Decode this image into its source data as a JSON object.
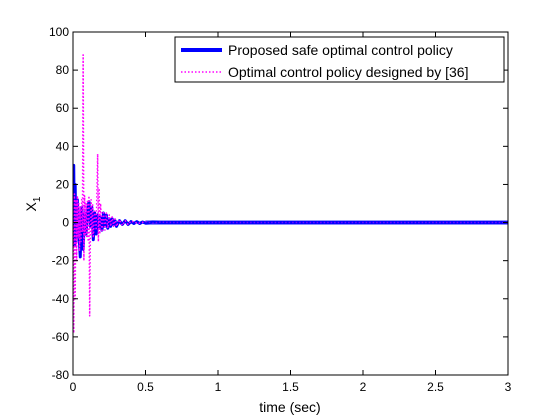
{
  "chart_data": {
    "type": "line",
    "title": "",
    "xlabel": "time (sec)",
    "ylabel_main": "X",
    "ylabel_sub": "1",
    "xlim": [
      0,
      3
    ],
    "ylim": [
      -80,
      100
    ],
    "x_ticks": [
      "0",
      "0.5",
      "1",
      "1.5",
      "2",
      "2.5",
      "3"
    ],
    "y_ticks": [
      "-80",
      "-60",
      "-40",
      "-20",
      "0",
      "20",
      "40",
      "60",
      "80",
      "100"
    ],
    "grid": false,
    "legend_position": "top-right",
    "series": [
      {
        "name": "Proposed safe optimal control policy",
        "color": "#0000ff",
        "style": "solid",
        "x": [
          0,
          0.005,
          0.01,
          0.015,
          0.02,
          0.03,
          0.04,
          0.05,
          0.06,
          0.07,
          0.08,
          0.09,
          0.1,
          0.11,
          0.12,
          0.13,
          0.14,
          0.15,
          0.16,
          0.17,
          0.18,
          0.19,
          0.2,
          0.21,
          0.22,
          0.23,
          0.24,
          0.25,
          0.26,
          0.27,
          0.28,
          0.29,
          0.3,
          0.32,
          0.34,
          0.36,
          0.38,
          0.4,
          0.42,
          0.44,
          0.46,
          0.48,
          0.5,
          0.55,
          0.6,
          0.7,
          0.8,
          1.0,
          1.5,
          2.0,
          2.5,
          3.0
        ],
        "y": [
          0,
          30,
          -12,
          20,
          -10,
          12,
          -5,
          -18,
          8,
          -14,
          5,
          -6,
          6,
          11,
          -2,
          8,
          -9,
          5,
          -6,
          4,
          -3,
          3,
          -4,
          5,
          -2,
          4,
          -3,
          2,
          -2,
          2,
          -1,
          1,
          -2,
          1,
          -1,
          1,
          -1,
          0.5,
          -0.5,
          0.5,
          -0.5,
          0.3,
          -0.3,
          0.2,
          0,
          0,
          0,
          0,
          0,
          0,
          0,
          0
        ]
      },
      {
        "name": "Optimal control policy designed by [36]",
        "color": "#ff00ff",
        "style": "dotted",
        "x": [
          0,
          0.005,
          0.01,
          0.015,
          0.02,
          0.025,
          0.03,
          0.035,
          0.04,
          0.045,
          0.05,
          0.055,
          0.06,
          0.065,
          0.07,
          0.075,
          0.08,
          0.085,
          0.09,
          0.095,
          0.1,
          0.105,
          0.11,
          0.115,
          0.12,
          0.125,
          0.13,
          0.135,
          0.14,
          0.15,
          0.16,
          0.17,
          0.175,
          0.18,
          0.185,
          0.19,
          0.2,
          0.21,
          0.22,
          0.23,
          0.24,
          0.25,
          0.26,
          0.27,
          0.28,
          0.29,
          0.3,
          0.32,
          0.34,
          0.36,
          0.38,
          0.4,
          0.45,
          0.5,
          0.55,
          0.6,
          0.7,
          1.0,
          1.5,
          2.0,
          2.5,
          3.0
        ],
        "y": [
          0,
          -58,
          15,
          -40,
          12,
          -20,
          14,
          -8,
          10,
          -15,
          8,
          -10,
          12,
          -5,
          88,
          -20,
          14,
          -6,
          10,
          -8,
          12,
          -10,
          14,
          -49,
          -5,
          12,
          -6,
          10,
          -8,
          6,
          -4,
          36,
          -10,
          18,
          -6,
          10,
          -5,
          6,
          -4,
          5,
          -3,
          4,
          -2,
          3,
          -2,
          2,
          -2,
          1.5,
          -1.5,
          1,
          -1,
          0.8,
          -0.5,
          0.5,
          -0.3,
          0.2,
          0,
          0,
          0,
          0,
          0,
          0
        ]
      }
    ]
  }
}
